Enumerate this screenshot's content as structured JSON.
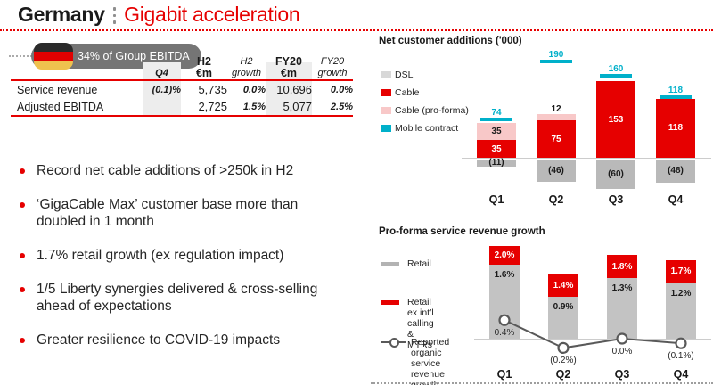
{
  "header": {
    "title_black": "Germany",
    "title_red": "Gigabit acceleration"
  },
  "badge": {
    "label": "34% of Group EBITDA",
    "flag": "germany"
  },
  "kpi_table": {
    "col_headers": {
      "q4": "Q4",
      "h2": "H2",
      "h2_unit": "€m",
      "h2_growth_line1": "H2",
      "h2_growth_line2": "growth",
      "fy20": "FY20",
      "fy20_unit": "€m",
      "fy20_growth_line1": "FY20",
      "fy20_growth_line2": "growth"
    },
    "rows": [
      {
        "label": "Service revenue",
        "q4": "(0.1)%",
        "h2_eur": "5,735",
        "h2_growth": "0.0%",
        "fy20_eur": "10,696",
        "fy20_growth": "0.0%"
      },
      {
        "label": "Adjusted EBITDA",
        "q4": "",
        "h2_eur": "2,725",
        "h2_growth": "1.5%",
        "fy20_eur": "5,077",
        "fy20_growth": "2.5%"
      }
    ]
  },
  "bullets": [
    "Record net cable additions of >250k in H2",
    "‘GigaCable Max’ customer base more than\ndoubled in 1 month",
    "1.7% retail growth (ex regulation impact)",
    "1/5 Liberty synergies delivered & cross-selling\nahead of expectations",
    "Greater resilience to COVID-19 impacts"
  ],
  "chart_data": [
    {
      "id": "net_customer_additions",
      "type": "bar",
      "title": "Net customer additions ('000)",
      "categories": [
        "Q1",
        "Q2",
        "Q3",
        "Q4"
      ],
      "series": [
        {
          "name": "DSL",
          "color": "#b9b9b9",
          "values": [
            -11,
            -46,
            -60,
            -48
          ],
          "labels": [
            "(11)",
            "(46)",
            "(60)",
            "(48)"
          ],
          "legend_color": "#d8d8d8"
        },
        {
          "name": "Cable",
          "color": "#e60000",
          "values": [
            35,
            75,
            153,
            118
          ],
          "labels": [
            "35",
            "75",
            "153",
            "118"
          ],
          "legend_color": "#e60000"
        },
        {
          "name": "Cable (pro-forma)",
          "color": "#f8c8c8",
          "values": [
            35,
            12,
            0,
            0
          ],
          "labels": [
            "35",
            "12",
            "",
            ""
          ],
          "legend_color": "#f8c8c8"
        },
        {
          "name": "Mobile contract",
          "color": "#00b0ca",
          "values": [
            74,
            190,
            160,
            118
          ],
          "labels": [
            "74",
            "190",
            "160",
            "118"
          ],
          "legend_color": "#00b0ca",
          "style": "tick-marker"
        }
      ],
      "legend_position": "left",
      "axis": {
        "zero_line": true,
        "unit": "'000",
        "ylim": [
          -70,
          200
        ],
        "grid": false
      }
    },
    {
      "id": "proforma_service_revenue_growth",
      "type": "bar+line",
      "title": "Pro-forma service revenue growth",
      "categories": [
        "Q1",
        "Q2",
        "Q3",
        "Q4"
      ],
      "series": [
        {
          "name": "Retail",
          "render": "bar",
          "color": "#c3c3c3",
          "values": [
            1.6,
            0.9,
            1.3,
            1.2
          ],
          "labels": [
            "1.6%",
            "0.9%",
            "1.3%",
            "1.2%"
          ],
          "legend_label": "Retail",
          "legend_color": "#b3b3b3"
        },
        {
          "name": "Retail ex int’l calling & MTRs",
          "render": "bar-top",
          "color": "#e60000",
          "values": [
            2.0,
            1.4,
            1.8,
            1.7
          ],
          "labels": [
            "2.0%",
            "1.4%",
            "1.8%",
            "1.7%"
          ],
          "legend_label": "Retail\nex int’l calling &\nMTRs",
          "legend_color": "#e60000"
        },
        {
          "name": "Reported organic service revenue growth",
          "render": "line",
          "color": "#595959",
          "values": [
            0.4,
            -0.2,
            0.0,
            -0.1
          ],
          "labels": [
            "0.4%",
            "(0.2%)",
            "0.0%",
            "(0.1%)"
          ],
          "legend_label": "Reported organic\nservice revenue\ngrowth"
        }
      ],
      "legend_position": "left",
      "axis": {
        "zero_line": true,
        "unit": "%",
        "ylim": [
          -0.4,
          2.2
        ],
        "grid": false
      }
    }
  ]
}
